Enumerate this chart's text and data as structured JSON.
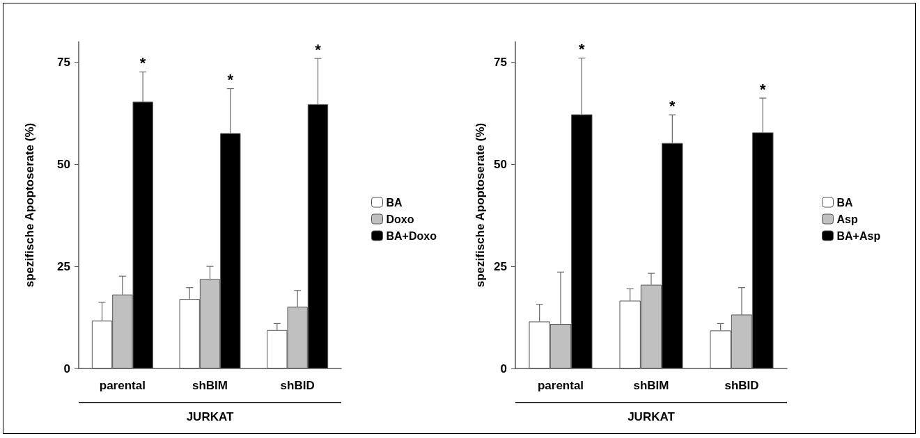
{
  "chart_data": [
    {
      "type": "bar",
      "ylabel": "spezifische Apoptoserate (%)",
      "xlabel": "JURKAT",
      "categories": [
        "parental",
        "shBIM",
        "shBID"
      ],
      "series": [
        {
          "name": "BA",
          "color": "#ffffff",
          "values": [
            11.7,
            17.0,
            9.4
          ],
          "errors": [
            [
              11.7,
              16.2
            ],
            [
              17.0,
              19.8
            ],
            [
              9.4,
              11.0
            ]
          ]
        },
        {
          "name": "Doxo",
          "color": "#c0c0c0",
          "values": [
            18.1,
            21.9,
            15.1
          ],
          "errors": [
            [
              18.1,
              22.6
            ],
            [
              21.9,
              25.0
            ],
            [
              15.1,
              19.1
            ]
          ]
        },
        {
          "name": "BA+Doxo",
          "color": "#000000",
          "values": [
            65.3,
            57.6,
            64.7
          ],
          "errors": [
            [
              65.3,
              72.6
            ],
            [
              57.6,
              68.5
            ],
            [
              64.7,
              75.9
            ]
          ]
        }
      ],
      "ylim": [
        0,
        80
      ],
      "yticks": [
        0,
        25,
        50,
        75
      ],
      "grid": false,
      "legend": "right",
      "annotations": [
        "*",
        "*",
        "*"
      ]
    },
    {
      "type": "bar",
      "ylabel": "spezifische Apoptoserate (%)",
      "xlabel": "JURKAT",
      "categories": [
        "parental",
        "shBIM",
        "shBID"
      ],
      "series": [
        {
          "name": "BA",
          "color": "#ffffff",
          "values": [
            11.5,
            16.6,
            9.3
          ],
          "errors": [
            [
              11.5,
              15.7
            ],
            [
              16.6,
              19.5
            ],
            [
              9.3,
              11.0
            ]
          ]
        },
        {
          "name": "Asp",
          "color": "#c0c0c0",
          "values": [
            10.9,
            20.5,
            13.2
          ],
          "errors": [
            [
              10.9,
              23.6
            ],
            [
              20.5,
              23.3
            ],
            [
              13.2,
              19.8
            ]
          ]
        },
        {
          "name": "BA+Asp",
          "color": "#000000",
          "values": [
            62.2,
            55.2,
            57.8
          ],
          "errors": [
            [
              62.2,
              76.0
            ],
            [
              55.2,
              62.1
            ],
            [
              57.8,
              66.2
            ]
          ]
        }
      ],
      "ylim": [
        0,
        80
      ],
      "yticks": [
        0,
        25,
        50,
        75
      ],
      "grid": false,
      "legend": "right",
      "annotations": [
        "*",
        "*",
        "*"
      ]
    }
  ]
}
